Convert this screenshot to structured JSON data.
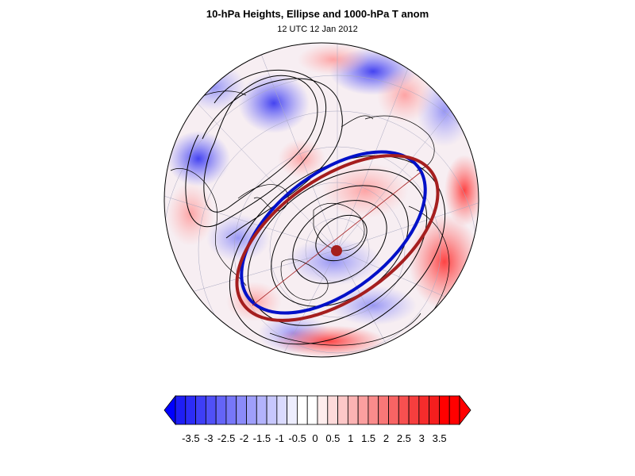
{
  "header": {
    "title": "10-hPa Heights, Ellipse and 1000-hPa T anom",
    "subtitle": "12 UTC 12 Jan 2012"
  },
  "colorbar": {
    "labels": [
      "-3.5",
      "-3",
      "-2.5",
      "-2",
      "-1.5",
      "-1",
      "-0.5",
      "0",
      "0.5",
      "1",
      "1.5",
      "2",
      "2.5",
      "3",
      "3.5"
    ],
    "colors": [
      "#1e1ef5",
      "#2c2cf6",
      "#3e3ef6",
      "#5050f7",
      "#6464f8",
      "#7777f9",
      "#8b8bfa",
      "#9f9ffb",
      "#b3b3fc",
      "#c7c7fd",
      "#dadafe",
      "#ededfe",
      "#ffffff",
      "#ffffff",
      "#feeded",
      "#fedada",
      "#fdc7c7",
      "#fcb3b3",
      "#fb9f9f",
      "#fa8b8b",
      "#f97777",
      "#f86464",
      "#f75050",
      "#f63e3e",
      "#f62c2c",
      "#f51e1e",
      "#ff0000",
      "#ff0000"
    ],
    "end_colors": {
      "low": "#0000ff",
      "high": "#ff0000"
    }
  },
  "legend_colors": {
    "blue_ellipse": "#0010c8",
    "red_ellipse": "#a51e1e",
    "center_marker": "#a51e1e",
    "contours": "#000000"
  }
}
